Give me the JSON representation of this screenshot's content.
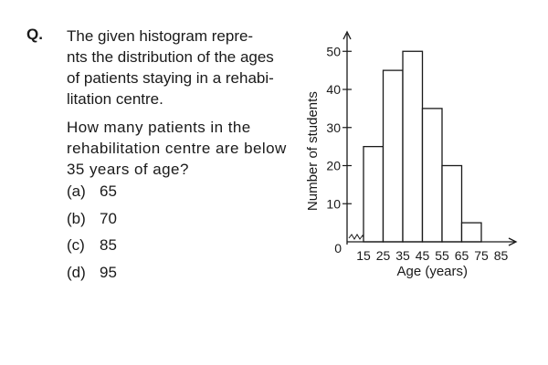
{
  "question": {
    "label": "Q.",
    "paragraph1": "The given histogram represents the distribution of the ages of patients staying in a rehabilitation centre.",
    "paragraph1_lines": [
      "The given histogram repre-",
      "nts the distribution of the ages",
      "of patients staying in a rehabi-",
      "litation centre."
    ],
    "paragraph2_lines": [
      "How many patients in the",
      "rehabilitation centre are below",
      "35 years of age?"
    ],
    "options": [
      {
        "label": "(a)",
        "value": "65"
      },
      {
        "label": "(b)",
        "value": "70"
      },
      {
        "label": "(c)",
        "value": "85"
      },
      {
        "label": "(d)",
        "value": "95"
      }
    ]
  },
  "chart_data": {
    "type": "bar",
    "title": "",
    "xlabel": "Age (years)",
    "ylabel": "Number of students",
    "x_ticks": [
      15,
      25,
      35,
      45,
      55,
      65,
      75,
      85
    ],
    "y_ticks": [
      10,
      20,
      30,
      40,
      50
    ],
    "origin_label": "0",
    "bins": [
      {
        "from": 15,
        "to": 25,
        "value": 25
      },
      {
        "from": 25,
        "to": 35,
        "value": 45
      },
      {
        "from": 35,
        "to": 45,
        "value": 50
      },
      {
        "from": 45,
        "to": 55,
        "value": 35
      },
      {
        "from": 55,
        "to": 65,
        "value": 20
      },
      {
        "from": 65,
        "to": 75,
        "value": 5
      }
    ],
    "xlim": [
      15,
      85
    ],
    "ylim": [
      0,
      50
    ],
    "axis_break": true,
    "grid": false,
    "bar_fill": "#ffffff",
    "stroke": "#1a1a1a"
  }
}
